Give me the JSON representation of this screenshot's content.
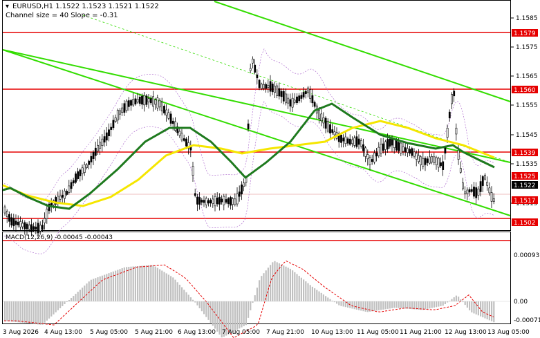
{
  "header": {
    "title": "EURUSD,H1  1.1522 1.1523 1.1521 1.1522",
    "channel_info": "Channel size = 40 Slope = -0.31",
    "indicator_label": "MACD(12,26,9) -0.00045 -0.00043"
  },
  "colors": {
    "background": "#ffffff",
    "candle": "#000000",
    "level_line": "#e60000",
    "channel": "#33dd00",
    "ma_fast": "#1e7a1e",
    "ma_slow": "#f5e600",
    "envelope": "#b070d0",
    "macd_hist": "#c0c0c0",
    "macd_signal": "#e60000"
  },
  "price_axis": {
    "ticks": [
      "1.1585",
      "1.1575",
      "1.1565",
      "1.1555",
      "1.1545",
      "1.1535",
      "1.1515"
    ]
  },
  "level_labels": [
    {
      "id": "1579",
      "value": "1.1579",
      "color": "#e60000"
    },
    {
      "id": "1560",
      "value": "1.1560",
      "color": "#e60000"
    },
    {
      "id": "1539",
      "value": "1.1539",
      "color": "#e60000"
    },
    {
      "id": "1525",
      "value": "1.1525",
      "color": "#e60000"
    },
    {
      "id": "1522",
      "value": "1.1522",
      "color": "#000000"
    },
    {
      "id": "1517",
      "value": "1.1517",
      "color": "#e60000"
    },
    {
      "id": "1502",
      "value": "1.1502",
      "color": "#e60000"
    }
  ],
  "macd_axis": {
    "ticks": [
      "0.00093",
      "0.00",
      "-0.00071"
    ]
  },
  "time_axis": {
    "labels": [
      "3 Aug 2026",
      "4 Aug 13:00",
      "5 Aug 05:00",
      "5 Aug 21:00",
      "6 Aug 13:00",
      "7 Aug 05:00",
      "7 Aug 21:00",
      "10 Aug 13:00",
      "11 Aug 05:00",
      "11 Aug 21:00",
      "12 Aug 13:00",
      "13 Aug 05:00"
    ]
  }
}
